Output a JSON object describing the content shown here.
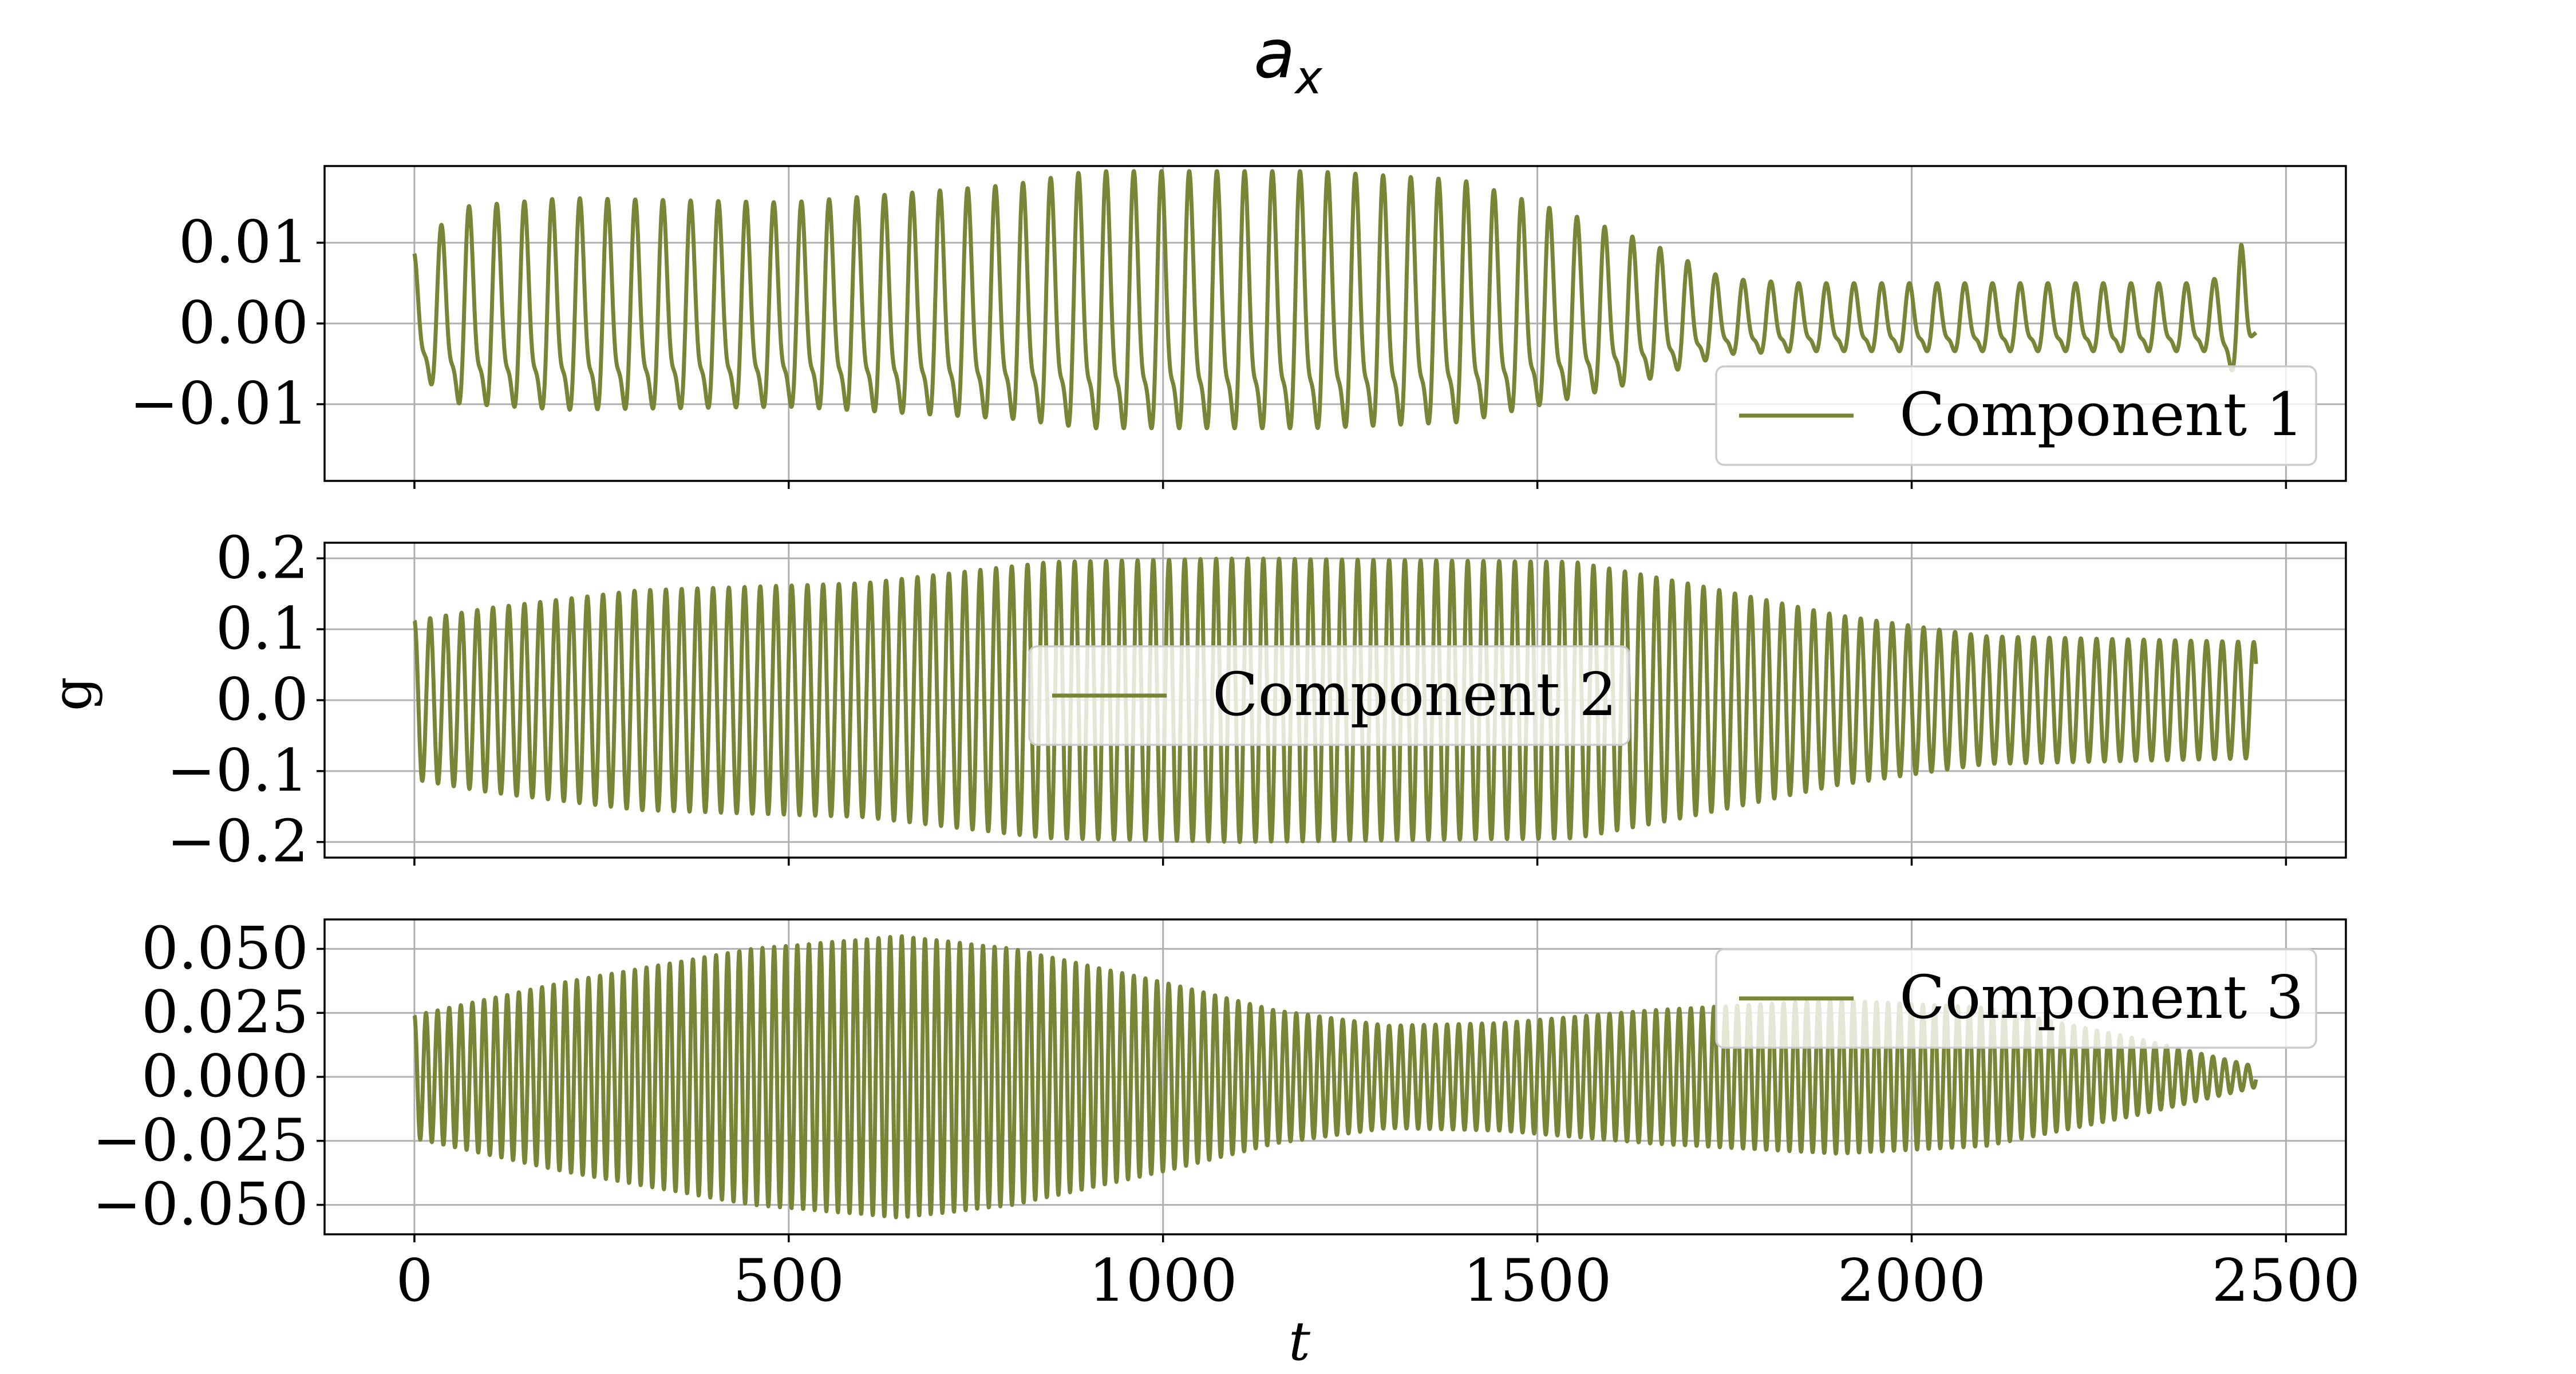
{
  "chart_data": {
    "type": "line",
    "title": "a",
    "title_subscript": "x",
    "xlabel": "t",
    "ylabel": "g",
    "color": "#7a8436",
    "grid": true,
    "xlim": [
      -120,
      2580
    ],
    "xticks": [
      0,
      500,
      1000,
      1500,
      2000,
      2500
    ],
    "xtick_labels": [
      "0",
      "500",
      "1000",
      "1500",
      "2000",
      "2500"
    ],
    "panels": [
      {
        "series": [
          {
            "name": "Component 1"
          }
        ],
        "ylim": [
          -0.0195,
          0.0195
        ],
        "yticks": [
          0.01,
          0.0,
          -0.01
        ],
        "ytick_labels": [
          "0.01",
          "0.00",
          "−0.01"
        ],
        "legend_position": "lower right",
        "signal": {
          "t_start": 0,
          "t_end": 2460,
          "envelope": [
            [
              0,
              0.008
            ],
            [
              60,
              0.013
            ],
            [
              200,
              0.014
            ],
            [
              500,
              0.0135
            ],
            [
              800,
              0.0155
            ],
            [
              900,
              0.017
            ],
            [
              1200,
              0.017
            ],
            [
              1400,
              0.016
            ],
            [
              1550,
              0.012
            ],
            [
              1650,
              0.009
            ],
            [
              1750,
              0.005
            ],
            [
              1850,
              0.0045
            ],
            [
              2400,
              0.0045
            ],
            [
              2440,
              0.009
            ],
            [
              2460,
              0.002
            ]
          ],
          "period": 37,
          "harmonic_ratio": 0.35
        }
      },
      {
        "series": [
          {
            "name": "Component 2"
          }
        ],
        "ylim": [
          -0.222,
          0.222
        ],
        "yticks": [
          0.2,
          0.1,
          0.0,
          -0.1,
          -0.2
        ],
        "ytick_labels": [
          "0.2",
          "0.1",
          "0.0",
          "−0.1",
          "−0.2"
        ],
        "legend_position": "center",
        "signal": {
          "t_start": 0,
          "t_end": 2460,
          "envelope": [
            [
              0,
              0.112
            ],
            [
              100,
              0.13
            ],
            [
              300,
              0.155
            ],
            [
              600,
              0.165
            ],
            [
              850,
              0.195
            ],
            [
              1100,
              0.2
            ],
            [
              1550,
              0.195
            ],
            [
              1700,
              0.165
            ],
            [
              1900,
              0.12
            ],
            [
              2100,
              0.09
            ],
            [
              2460,
              0.082
            ]
          ],
          "period": 21,
          "harmonic_ratio": 0.0
        }
      },
      {
        "series": [
          {
            "name": "Component 3"
          }
        ],
        "ylim": [
          -0.0615,
          0.0615
        ],
        "yticks": [
          0.05,
          0.025,
          0.0,
          -0.025,
          -0.05
        ],
        "ytick_labels": [
          "0.050",
          "0.025",
          "0.000",
          "−0.025",
          "−0.050"
        ],
        "legend_position": "upper right",
        "signal": {
          "t_start": 0,
          "t_end": 2460,
          "envelope": [
            [
              0,
              0.024
            ],
            [
              200,
              0.037
            ],
            [
              450,
              0.05
            ],
            [
              650,
              0.055
            ],
            [
              800,
              0.05
            ],
            [
              1000,
              0.037
            ],
            [
              1150,
              0.026
            ],
            [
              1300,
              0.02
            ],
            [
              1450,
              0.021
            ],
            [
              1650,
              0.026
            ],
            [
              1900,
              0.03
            ],
            [
              2100,
              0.027
            ],
            [
              2300,
              0.015
            ],
            [
              2460,
              0.004
            ]
          ],
          "period": 15.5,
          "harmonic_ratio": 0.0
        }
      }
    ]
  }
}
